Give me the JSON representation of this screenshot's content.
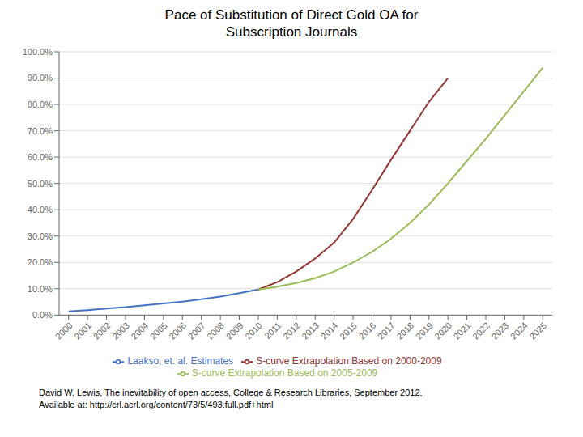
{
  "chart_data": {
    "type": "line",
    "title": "Pace of Substitution of Direct Gold OA for\nSubscription Journals",
    "x": [
      2000,
      2001,
      2002,
      2003,
      2004,
      2005,
      2006,
      2007,
      2008,
      2009,
      2010,
      2011,
      2012,
      2013,
      2014,
      2015,
      2016,
      2017,
      2018,
      2019,
      2020,
      2021,
      2022,
      2023,
      2024,
      2025
    ],
    "series": [
      {
        "name": "Laakso, et. al. Estimates",
        "color": "#4472C4",
        "values": [
          0.014,
          0.019,
          0.025,
          0.03,
          0.037,
          0.044,
          0.051,
          0.06,
          0.07,
          0.083,
          0.097,
          null,
          null,
          null,
          null,
          null,
          null,
          null,
          null,
          null,
          null,
          null,
          null,
          null,
          null,
          null
        ]
      },
      {
        "name": "S-curve Extrapolation Based on 2000-2009",
        "color": "#943634",
        "values": [
          null,
          null,
          null,
          null,
          null,
          null,
          null,
          null,
          null,
          null,
          0.097,
          0.125,
          0.165,
          0.215,
          0.275,
          0.365,
          0.475,
          0.59,
          0.7,
          0.81,
          0.9,
          null,
          null,
          null,
          null,
          null
        ]
      },
      {
        "name": "S-curve Extrapolation Based on 2005-2009",
        "color": "#9BBB59",
        "values": [
          null,
          null,
          null,
          null,
          null,
          null,
          null,
          null,
          null,
          null,
          0.097,
          0.108,
          0.122,
          0.14,
          0.165,
          0.2,
          0.24,
          0.29,
          0.35,
          0.42,
          0.5,
          0.585,
          0.67,
          0.76,
          0.85,
          0.94
        ]
      }
    ],
    "xlim": [
      1999.5,
      2025.5
    ],
    "xticks": [
      2000,
      2001,
      2002,
      2003,
      2004,
      2005,
      2006,
      2007,
      2008,
      2009,
      2010,
      2011,
      2012,
      2013,
      2014,
      2015,
      2016,
      2017,
      2018,
      2019,
      2020,
      2021,
      2022,
      2023,
      2024,
      2025
    ],
    "ylim": [
      0,
      1.0
    ],
    "yticks": [
      {
        "value": 0.0,
        "label": "0.0%"
      },
      {
        "value": 0.1,
        "label": "10.0%"
      },
      {
        "value": 0.2,
        "label": "20.0%"
      },
      {
        "value": 0.3,
        "label": "30.0%"
      },
      {
        "value": 0.4,
        "label": "40.0%"
      },
      {
        "value": 0.5,
        "label": "50.0%"
      },
      {
        "value": 0.6,
        "label": "60.0%"
      },
      {
        "value": 0.7,
        "label": "70.0%"
      },
      {
        "value": 0.8,
        "label": "80.0%"
      },
      {
        "value": 0.9,
        "label": "90.0%"
      },
      {
        "value": 1.0,
        "label": "100.0%"
      }
    ],
    "grid": true,
    "legend": "bottom",
    "annotations": [
      "David W. Lewis, The inevitability of open access, College & Research Libraries, September 2012.",
      "Available at: http://crl.acrl.org/content/73/5/493.full.pdf+html"
    ]
  }
}
